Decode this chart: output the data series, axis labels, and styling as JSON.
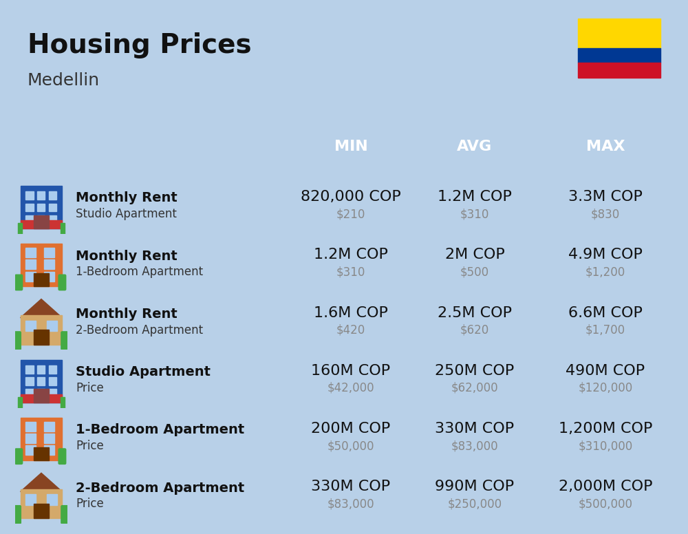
{
  "title": "Housing Prices",
  "subtitle": "Medellin",
  "background_color": "#b8d0e8",
  "header_color": "#5b8db8",
  "header_text_color": "#ffffff",
  "row_bg_color": "#c8daea",
  "row_alt_bg_color": "#b8d0e8",
  "separator_color": "#ffffff",
  "col_header": [
    "MIN",
    "AVG",
    "MAX"
  ],
  "rows": [
    {
      "icon_type": "studio_blue",
      "label_bold": "Monthly Rent",
      "label_sub": "Studio Apartment",
      "min_cop": "820,000 COP",
      "min_usd": "$210",
      "avg_cop": "1.2M COP",
      "avg_usd": "$310",
      "max_cop": "3.3M COP",
      "max_usd": "$830"
    },
    {
      "icon_type": "bedroom1_orange",
      "label_bold": "Monthly Rent",
      "label_sub": "1-Bedroom Apartment",
      "min_cop": "1.2M COP",
      "min_usd": "$310",
      "avg_cop": "2M COP",
      "avg_usd": "$500",
      "max_cop": "4.9M COP",
      "max_usd": "$1,200"
    },
    {
      "icon_type": "bedroom2_beige",
      "label_bold": "Monthly Rent",
      "label_sub": "2-Bedroom Apartment",
      "min_cop": "1.6M COP",
      "min_usd": "$420",
      "avg_cop": "2.5M COP",
      "avg_usd": "$620",
      "max_cop": "6.6M COP",
      "max_usd": "$1,700"
    },
    {
      "icon_type": "studio_blue2",
      "label_bold": "Studio Apartment",
      "label_sub": "Price",
      "min_cop": "160M COP",
      "min_usd": "$42,000",
      "avg_cop": "250M COP",
      "avg_usd": "$62,000",
      "max_cop": "490M COP",
      "max_usd": "$120,000"
    },
    {
      "icon_type": "bedroom1_orange2",
      "label_bold": "1-Bedroom Apartment",
      "label_sub": "Price",
      "min_cop": "200M COP",
      "min_usd": "$50,000",
      "avg_cop": "330M COP",
      "avg_usd": "$83,000",
      "max_cop": "1,200M COP",
      "max_usd": "$310,000"
    },
    {
      "icon_type": "bedroom2_beige2",
      "label_bold": "2-Bedroom Apartment",
      "label_sub": "Price",
      "min_cop": "330M COP",
      "min_usd": "$83,000",
      "avg_cop": "990M COP",
      "avg_usd": "$250,000",
      "max_cop": "2,000M COP",
      "max_usd": "$500,000"
    }
  ],
  "flag_colors": [
    "#FFD700",
    "#003893",
    "#CE1126"
  ],
  "cop_fontsize": 16,
  "usd_fontsize": 12,
  "label_bold_fontsize": 14,
  "label_sub_fontsize": 12
}
